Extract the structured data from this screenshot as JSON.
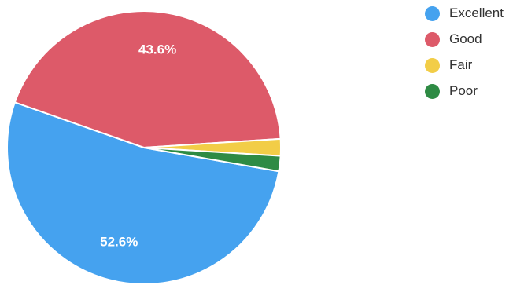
{
  "chart_data": {
    "type": "pie",
    "title": "",
    "legend_position": "top-right",
    "categories": [
      "Excellent",
      "Good",
      "Fair",
      "Poor"
    ],
    "values": [
      52.6,
      43.6,
      2.0,
      1.8
    ],
    "colors": [
      "#45a2ef",
      "#dd5a69",
      "#f2cd47",
      "#2e8b44"
    ],
    "data_labels": [
      "52.6%",
      "43.6%",
      "",
      ""
    ]
  }
}
